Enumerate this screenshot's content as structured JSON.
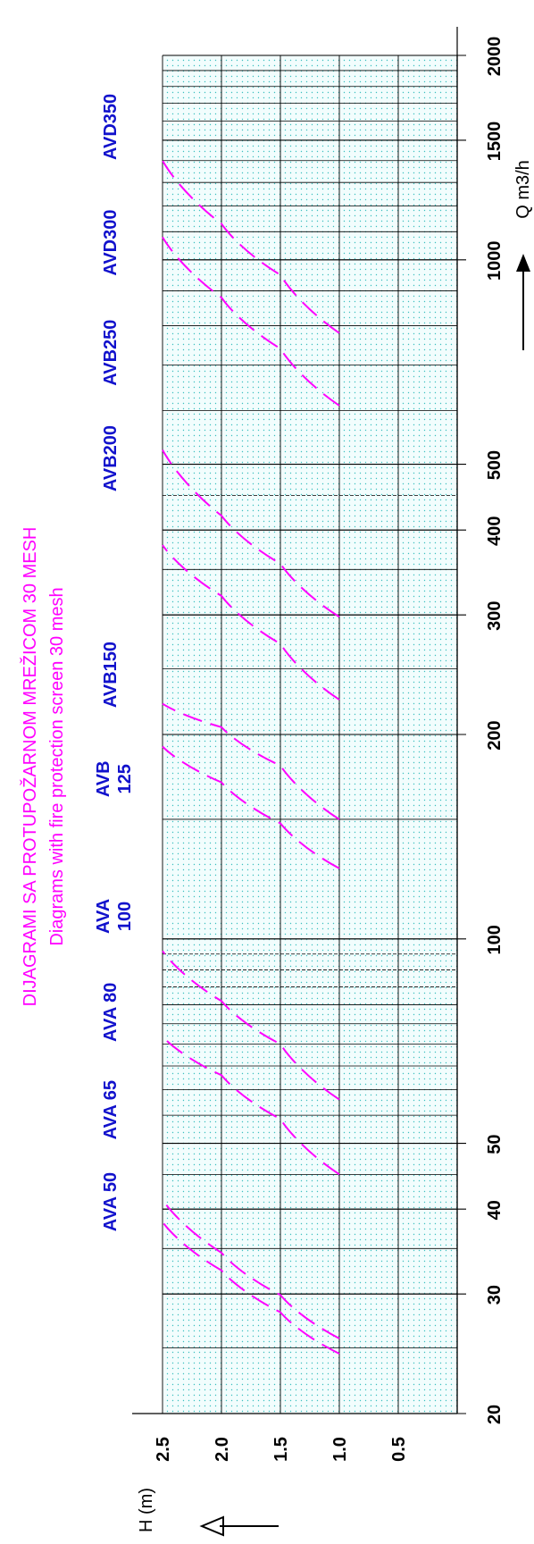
{
  "chart_data": {
    "type": "line",
    "orientation": "rotated 90 degrees counter-clockwise (Q runs bottom-to-top, H runs left-to-right)",
    "title": "DIJAGRAMI SA PROTUPOŽARNOM MREŽICOM 30 MESH",
    "subtitle": "Diagrams with fire protection screen 30 mesh",
    "xlabel": "Q m3/h",
    "ylabel": "H (m)",
    "x_scale": "log",
    "xlim": [
      20,
      2000
    ],
    "ylim": [
      0,
      2.5
    ],
    "x_ticks": [
      20,
      30,
      40,
      50,
      100,
      200,
      300,
      400,
      500,
      1000,
      1500,
      2000
    ],
    "y_ticks": [
      0.5,
      1.0,
      1.5,
      2.0,
      2.5
    ],
    "grid": true,
    "line_color": "#ff00ff",
    "label_color": "#1111cc",
    "line_style": "dashed",
    "series": [
      {
        "points": [
          [
            24.5,
            1.0
          ],
          [
            28.2,
            1.5
          ],
          [
            32.5,
            2.0
          ],
          [
            38.3,
            2.5
          ]
        ]
      },
      {
        "points": [
          [
            25.8,
            1.0
          ],
          [
            29.9,
            1.5
          ],
          [
            34.5,
            2.0
          ],
          [
            41.3,
            2.5
          ]
        ]
      },
      {
        "points": [
          [
            45.0,
            1.0
          ],
          [
            54.3,
            1.5
          ],
          [
            63.0,
            2.0
          ],
          [
            71.8,
            2.5
          ]
        ]
      },
      {
        "points": [
          [
            58.0,
            1.0
          ],
          [
            70.0,
            1.5
          ],
          [
            81.0,
            2.0
          ],
          [
            96.0,
            2.5
          ]
        ]
      },
      {
        "points": [
          [
            127.0,
            1.0
          ],
          [
            148.0,
            1.5
          ],
          [
            170.0,
            2.0
          ],
          [
            192.0,
            2.5
          ]
        ]
      },
      {
        "points": [
          [
            150.0,
            1.0
          ],
          [
            180.0,
            1.5
          ],
          [
            205.0,
            2.0
          ],
          [
            222.0,
            2.5
          ]
        ]
      },
      {
        "points": [
          [
            225.0,
            1.0
          ],
          [
            272.0,
            1.5
          ],
          [
            320.0,
            2.0
          ],
          [
            380.0,
            2.5
          ]
        ]
      },
      {
        "points": [
          [
            298.0,
            1.0
          ],
          [
            357.0,
            1.5
          ],
          [
            420.0,
            2.0
          ],
          [
            525.0,
            2.5
          ]
        ]
      },
      {
        "points": [
          [
            610.0,
            1.0
          ],
          [
            740.0,
            1.5
          ],
          [
            880.0,
            2.0
          ],
          [
            1080.0,
            2.5
          ]
        ]
      },
      {
        "points": [
          [
            780.0,
            1.0
          ],
          [
            950.0,
            1.5
          ],
          [
            1130.0,
            2.0
          ],
          [
            1400.0,
            2.5
          ]
        ]
      }
    ],
    "labels": [
      {
        "lines": [
          "AVA 50"
        ],
        "q": 41
      },
      {
        "lines": [
          "AVA 65"
        ],
        "q": 56
      },
      {
        "lines": [
          "AVA 80"
        ],
        "q": 78
      },
      {
        "lines": [
          "AVA",
          "100"
        ],
        "q": 108
      },
      {
        "lines": [
          "AVB",
          "125"
        ],
        "q": 172
      },
      {
        "lines": [
          "AVB150"
        ],
        "q": 245
      },
      {
        "lines": [
          "AVB200"
        ],
        "q": 510
      },
      {
        "lines": [
          "AVB250"
        ],
        "q": 730
      },
      {
        "lines": [
          "AVD300"
        ],
        "q": 1060
      },
      {
        "lines": [
          "AVD350"
        ],
        "q": 1570
      }
    ]
  }
}
